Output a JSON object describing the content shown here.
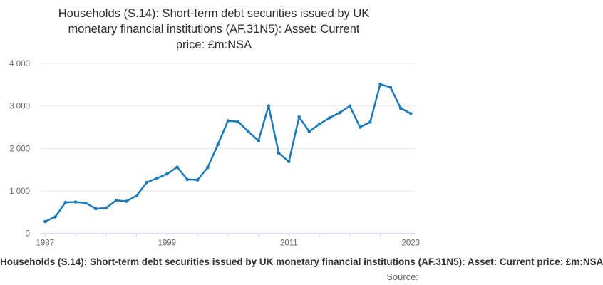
{
  "header": {
    "title": "Households (S.14): Short-term debt securities issued by UK monetary financial institutions (AF.31N5): Asset: Current price: £m:NSA",
    "title_lines": [
      "Households (S.14): Short-term debt securities issued by UK",
      "monetary financial institutions (AF.31N5): Asset: Current",
      "price: £m:NSA"
    ]
  },
  "legend": {
    "label": "Households (S.14): Short-term debt securities issued by UK monetary financial institutions (AF.31N5): Asset: Current price: £m:NSA"
  },
  "footer": {
    "source_label": "Source:"
  },
  "chart_data": {
    "type": "line",
    "title": "Households (S.14): Short-term debt securities issued by UK monetary financial institutions (AF.31N5): Asset: Current price: £m:NSA",
    "x": [
      1987,
      1988,
      1989,
      1990,
      1991,
      1992,
      1993,
      1994,
      1995,
      1996,
      1997,
      1998,
      1999,
      2000,
      2001,
      2002,
      2003,
      2004,
      2005,
      2006,
      2007,
      2008,
      2009,
      2010,
      2011,
      2012,
      2013,
      2014,
      2015,
      2016,
      2017,
      2018,
      2019,
      2020,
      2021,
      2022,
      2023
    ],
    "values": [
      280,
      390,
      730,
      740,
      715,
      580,
      600,
      780,
      755,
      890,
      1200,
      1300,
      1400,
      1560,
      1270,
      1260,
      1550,
      2090,
      2650,
      2630,
      2400,
      2180,
      3000,
      1890,
      1690,
      2740,
      2400,
      2570,
      2720,
      2840,
      3000,
      2500,
      2620,
      3510,
      3440,
      2950,
      2820
    ],
    "xlabel": "",
    "ylabel": "",
    "ylim": [
      0,
      4000
    ],
    "yticks": [
      0,
      1000,
      2000,
      3000,
      4000
    ],
    "ytick_labels": [
      "0",
      "1 000",
      "2 000",
      "3 000",
      "4 000"
    ],
    "xticks": [
      1987,
      1990,
      1993,
      1996,
      1999,
      2002,
      2005,
      2008,
      2011,
      2014,
      2017,
      2020,
      2023
    ],
    "xtick_labels": [
      "1987",
      "",
      "",
      "",
      "1999",
      "",
      "",
      "",
      "2011",
      "",
      "",
      "",
      "2023"
    ],
    "grid": true,
    "legend_position": "bottom",
    "colors": {
      "line": "#1a7ab9",
      "grid": "#e6e6e6",
      "axis": "#ccd6eb",
      "tick_label": "#666666",
      "title": "#2e2e2e",
      "caption": "#333333",
      "source": "#666666"
    }
  }
}
